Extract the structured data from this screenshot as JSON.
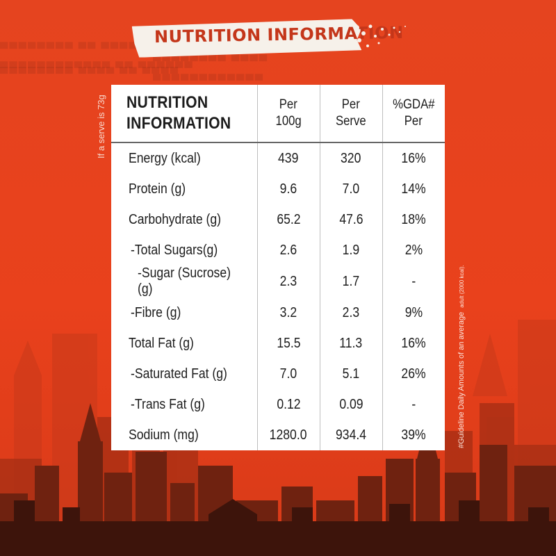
{
  "banner": {
    "title": "NUTRITION INFORMATION"
  },
  "side_note": "If a serve is 73g",
  "footnote": {
    "main": "#Guideline Daily Amounts of an average",
    "small": "adult (2000 kcal)."
  },
  "table": {
    "title": "NUTRITION INFORMATION",
    "col_per100_l1": "Per",
    "col_per100_l2": "100g",
    "col_serve_l1": "Per",
    "col_serve_l2": "Serve",
    "col_gda_l1": "%GDA#",
    "col_gda_l2": "Per",
    "rows": [
      {
        "label": "Energy (kcal)",
        "per100": "439",
        "serve": "320",
        "gda": "16%"
      },
      {
        "label": "Protein (g)",
        "per100": "9.6",
        "serve": "7.0",
        "gda": "14%"
      },
      {
        "label": "Carbohydrate (g)",
        "per100": "65.2",
        "serve": "47.6",
        "gda": "18%"
      },
      {
        "label": "-Total Sugars(g)",
        "per100": "2.6",
        "serve": "1.9",
        "gda": "2%"
      },
      {
        "label": "-Sugar (Sucrose)(g)",
        "per100": "2.3",
        "serve": "1.7",
        "gda": "-"
      },
      {
        "label": "-Fibre (g)",
        "per100": "3.2",
        "serve": "2.3",
        "gda": "9%"
      },
      {
        "label": "Total Fat (g)",
        "per100": "15.5",
        "serve": "11.3",
        "gda": "16%"
      },
      {
        "label": "-Saturated Fat (g)",
        "per100": "7.0",
        "serve": "5.1",
        "gda": "26%"
      },
      {
        "label": "-Trans Fat (g)",
        "per100": "0.12",
        "serve": "0.09",
        "gda": "-"
      },
      {
        "label": "Sodium (mg)",
        "per100": "1280.0",
        "serve": "934.4",
        "gda": "39%"
      }
    ]
  },
  "colors": {
    "background": "#e8401d",
    "banner_text": "#c4361a",
    "skyline_dark": "#4a1a10"
  }
}
